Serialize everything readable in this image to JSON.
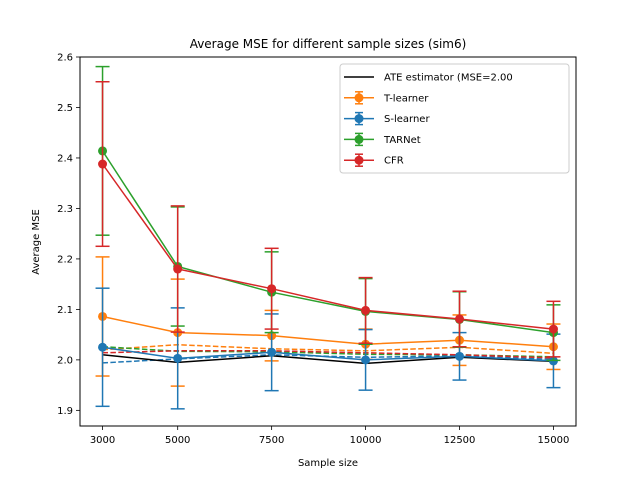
{
  "chart_data": {
    "type": "line",
    "title": "Average MSE for different sample sizes (sim6)",
    "xlabel": "Sample size",
    "ylabel": "Average MSE",
    "x": [
      3000,
      5000,
      7500,
      10000,
      12500,
      15000
    ],
    "x_tick_labels": [
      "3000",
      "5000",
      "7500",
      "10000",
      "12500",
      "15000"
    ],
    "y_ticks": [
      1.9,
      2.0,
      2.1,
      2.2,
      2.3,
      2.4,
      2.5,
      2.6
    ],
    "y_tick_labels": [
      "1.9",
      "2.0",
      "2.1",
      "2.2",
      "2.3",
      "2.4",
      "2.5",
      "2.6"
    ],
    "xlim": [
      2400,
      15600
    ],
    "ylim": [
      1.869,
      2.6
    ],
    "grid": false,
    "legend_position": "top-right",
    "series": [
      {
        "name": "ATE estimator (MSE=2.00",
        "color": "#000000",
        "style": "line",
        "values": [
          2.01,
          1.995,
          2.008,
          1.993,
          2.005,
          1.997
        ]
      },
      {
        "name": "T-learner",
        "color": "#ff7f0e",
        "style": "errorbar",
        "values": [
          2.086,
          2.054,
          2.048,
          2.031,
          2.039,
          2.026
        ],
        "err": [
          0.118,
          0.106,
          0.05,
          0.03,
          0.05,
          0.045
        ],
        "dashed_values": [
          2.02,
          2.03,
          2.022,
          2.018,
          2.025,
          2.013
        ]
      },
      {
        "name": "S-learner",
        "color": "#1f77b4",
        "style": "errorbar",
        "values": [
          2.025,
          2.003,
          2.015,
          2.0,
          2.007,
          1.998
        ],
        "err": [
          0.117,
          0.1,
          0.076,
          0.06,
          0.047,
          0.053
        ],
        "dashed_values": [
          1.994,
          2.002,
          2.01,
          2.005,
          2.008,
          2.001
        ]
      },
      {
        "name": "TARNet",
        "color": "#2ca02c",
        "style": "errorbar",
        "values": [
          2.414,
          2.185,
          2.134,
          2.096,
          2.08,
          2.054
        ],
        "err": [
          0.167,
          0.118,
          0.08,
          0.065,
          0.055,
          0.055
        ],
        "dashed_values": [
          2.026,
          2.017,
          2.016,
          2.011,
          2.01,
          2.006
        ]
      },
      {
        "name": "CFR",
        "color": "#d62728",
        "style": "errorbar",
        "values": [
          2.388,
          2.18,
          2.141,
          2.098,
          2.081,
          2.061
        ],
        "err": [
          0.163,
          0.125,
          0.08,
          0.065,
          0.055,
          0.055
        ],
        "dashed_values": [
          2.014,
          2.018,
          2.018,
          2.014,
          2.01,
          2.004
        ]
      }
    ]
  }
}
